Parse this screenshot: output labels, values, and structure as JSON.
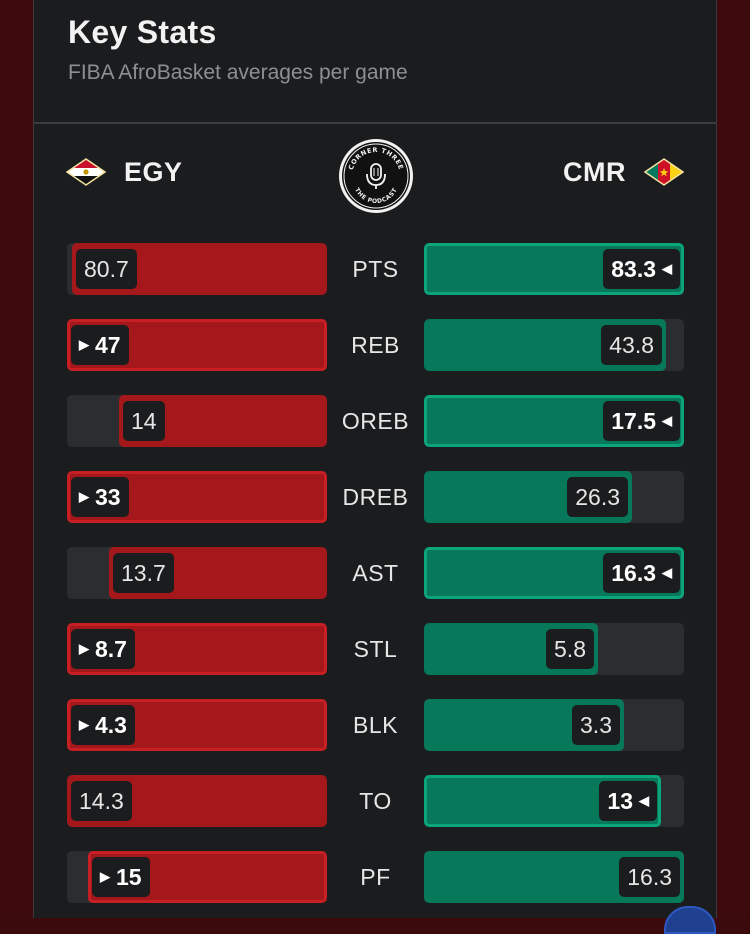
{
  "header": {
    "title": "Key Stats",
    "subtitle": "FIBA AfroBasket averages per game"
  },
  "teams": {
    "left": {
      "name": "EGY",
      "flag_icon": "egypt-flag-icon",
      "color": "#a4181b"
    },
    "right": {
      "name": "CMR",
      "flag_icon": "cameroon-flag-icon",
      "color": "#08785a"
    }
  },
  "logo": {
    "top_text": "CORNER THREE",
    "bottom_text": "THE PODCAST",
    "icon": "microphone-icon"
  },
  "colors": {
    "background": "#1b1c1e",
    "track": "#2b2d31",
    "left_fill": "#a4181b",
    "right_fill": "#08785a"
  },
  "stats": [
    {
      "label": "PTS",
      "left": "80.7",
      "right": "83.3",
      "left_share": 0.98,
      "right_share": 1.0,
      "leader": "right"
    },
    {
      "label": "REB",
      "left": "47",
      "right": "43.8",
      "left_share": 1.0,
      "right_share": 0.93,
      "leader": "left"
    },
    {
      "label": "OREB",
      "left": "14",
      "right": "17.5",
      "left_share": 0.8,
      "right_share": 1.0,
      "leader": "right"
    },
    {
      "label": "DREB",
      "left": "33",
      "right": "26.3",
      "left_share": 1.0,
      "right_share": 0.8,
      "leader": "left"
    },
    {
      "label": "AST",
      "left": "13.7",
      "right": "16.3",
      "left_share": 0.84,
      "right_share": 1.0,
      "leader": "right"
    },
    {
      "label": "STL",
      "left": "8.7",
      "right": "5.8",
      "left_share": 1.0,
      "right_share": 0.67,
      "leader": "left"
    },
    {
      "label": "BLK",
      "left": "4.3",
      "right": "3.3",
      "left_share": 1.0,
      "right_share": 0.77,
      "leader": "left"
    },
    {
      "label": "TO",
      "left": "14.3",
      "right": "13",
      "left_share": 1.0,
      "right_share": 0.91,
      "leader": "right"
    },
    {
      "label": "PF",
      "left": "15",
      "right": "16.3",
      "left_share": 0.92,
      "right_share": 1.0,
      "leader": "left"
    }
  ]
}
